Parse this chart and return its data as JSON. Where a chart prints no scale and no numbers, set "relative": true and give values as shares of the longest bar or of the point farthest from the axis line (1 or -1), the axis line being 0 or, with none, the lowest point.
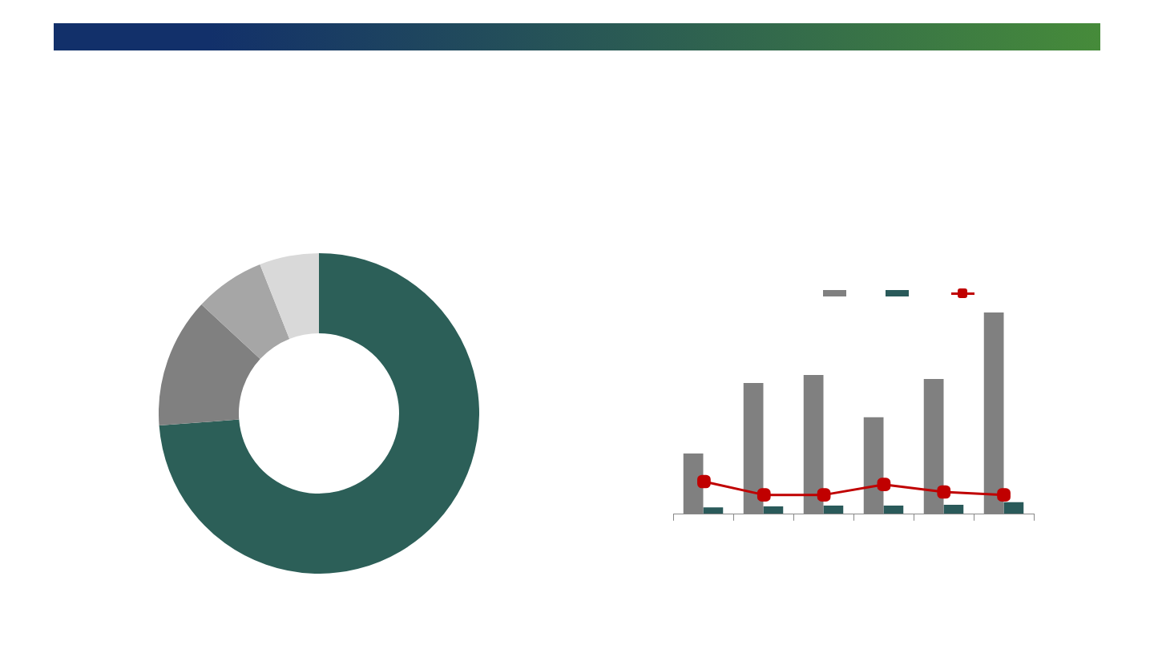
{
  "chart_data": [
    {
      "type": "donut",
      "categories": [
        null,
        null,
        null,
        null
      ],
      "values": [
        73.8,
        13.1,
        7.1,
        6.0
      ],
      "colors": [
        "#2c5f58",
        "#808080",
        "#a6a6a6",
        "#d9d9d9"
      ],
      "legend": false
    },
    {
      "type": "bar",
      "relative": true,
      "categories": [
        null,
        null,
        null,
        null,
        null,
        null
      ],
      "grid": false,
      "series": [
        {
          "color": "#808080",
          "values": [
            0.3,
            0.65,
            0.69,
            0.48,
            0.67,
            1
          ]
        },
        {
          "color": "#2a5a5a",
          "values": [
            0.033,
            0.038,
            0.042,
            0.042,
            0.046,
            0.059
          ]
        }
      ]
    },
    {
      "type": "line",
      "relative": true,
      "categories": [
        null,
        null,
        null,
        null,
        null,
        null
      ],
      "grid": false,
      "marker": "square",
      "series": [
        {
          "color": "#c00000",
          "values": [
            1,
            0.59,
            0.59,
            0.91,
            0.68,
            0.59
          ]
        }
      ]
    }
  ]
}
